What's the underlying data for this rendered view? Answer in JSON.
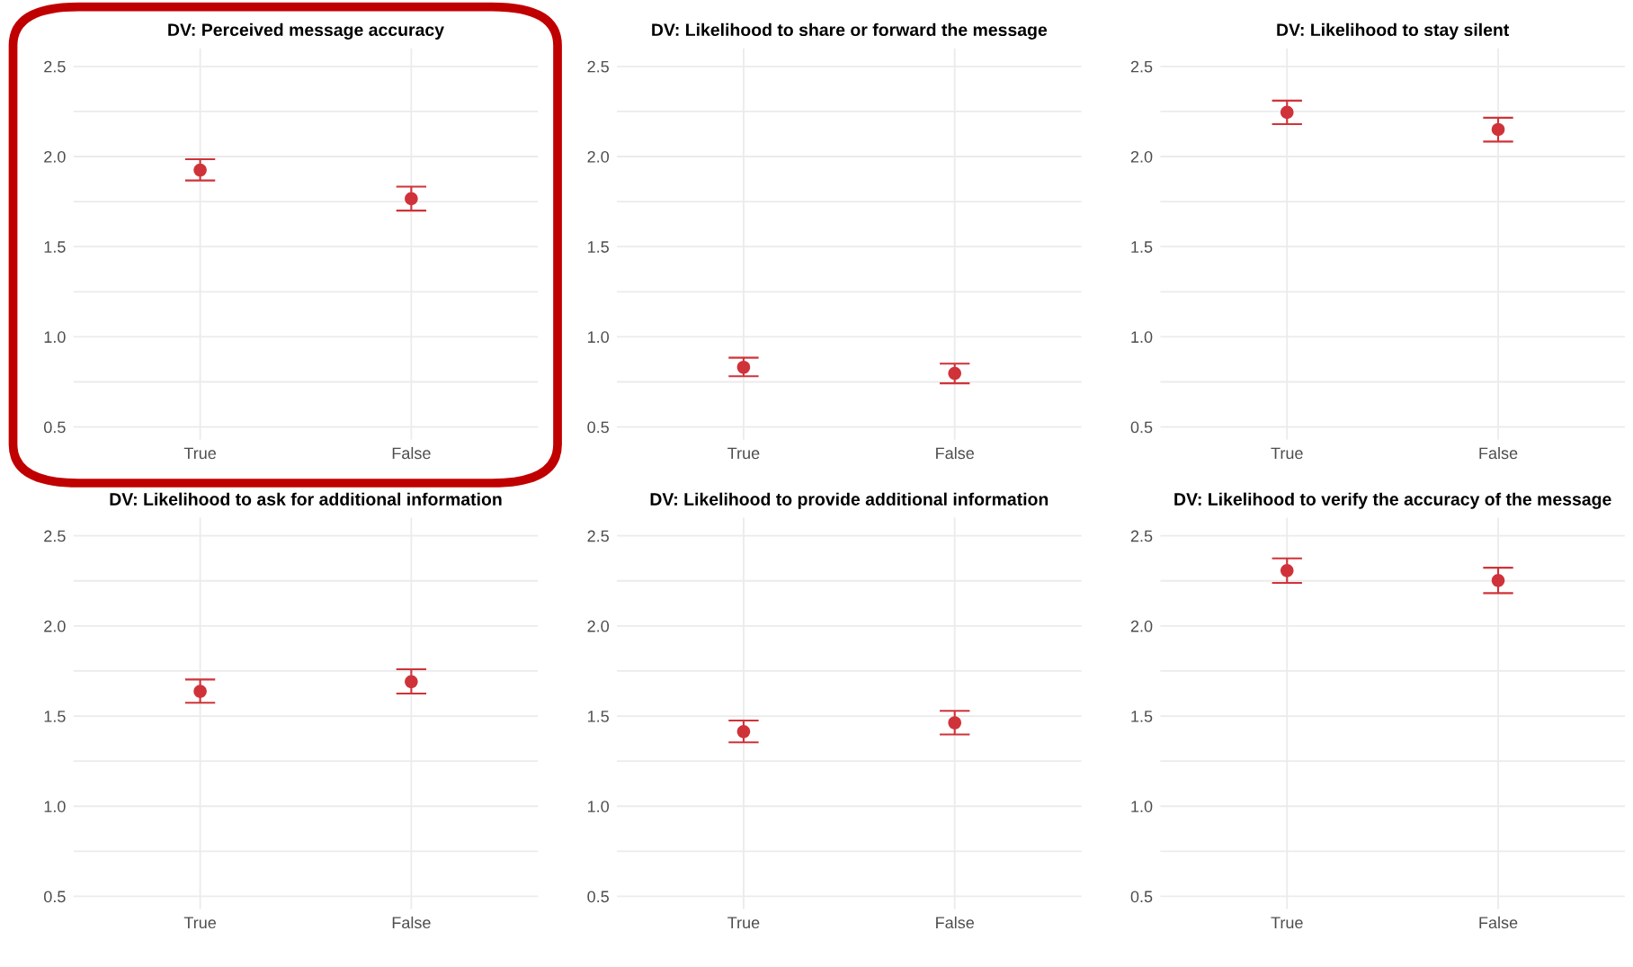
{
  "chart_data": [
    {
      "type": "scatter",
      "title": "DV: Perceived message accuracy",
      "categories": [
        "True",
        "False"
      ],
      "values": [
        1.925,
        1.766
      ],
      "errors": [
        [
          1.867,
          1.985
        ],
        [
          1.7,
          1.833
        ]
      ],
      "color": "#cf3339",
      "marker": "circle",
      "ylim": [
        0.43,
        2.6
      ],
      "yticks": [
        0.5,
        {
          "value": 0.75,
          "label": null
        },
        {
          "value": 1,
          "label": "1.0"
        },
        {
          "value": 1.25,
          "label": null
        },
        1.5,
        {
          "value": 1.75,
          "label": null
        },
        {
          "value": 2,
          "label": "2.0"
        },
        {
          "value": 2.25,
          "label": null
        },
        2.5
      ],
      "grid": true
    },
    {
      "type": "scatter",
      "title": "DV: Likelihood to share or forward the message",
      "categories": [
        "True",
        "False"
      ],
      "values": [
        0.831,
        0.797
      ],
      "errors": [
        [
          0.781,
          0.884
        ],
        [
          0.742,
          0.851
        ]
      ],
      "color": "#cf3339",
      "marker": "circle",
      "ylim": [
        0.43,
        2.6
      ],
      "yticks": [
        0.5,
        {
          "value": 0.75,
          "label": null
        },
        {
          "value": 1,
          "label": "1.0"
        },
        {
          "value": 1.25,
          "label": null
        },
        1.5,
        {
          "value": 1.75,
          "label": null
        },
        {
          "value": 2,
          "label": "2.0"
        },
        {
          "value": 2.25,
          "label": null
        },
        2.5
      ],
      "grid": true
    },
    {
      "type": "scatter",
      "title": "DV: Likelihood to stay silent",
      "categories": [
        "True",
        "False"
      ],
      "values": [
        2.245,
        2.15
      ],
      "errors": [
        [
          2.18,
          2.31
        ],
        [
          2.083,
          2.215
        ]
      ],
      "color": "#cf3339",
      "marker": "circle",
      "ylim": [
        0.43,
        2.6
      ],
      "yticks": [
        0.5,
        {
          "value": 0.75,
          "label": null
        },
        {
          "value": 1,
          "label": "1.0"
        },
        {
          "value": 1.25,
          "label": null
        },
        1.5,
        {
          "value": 1.75,
          "label": null
        },
        {
          "value": 2,
          "label": "2.0"
        },
        {
          "value": 2.25,
          "label": null
        },
        2.5
      ],
      "grid": true
    },
    {
      "type": "scatter",
      "title": "DV: Likelihood to ask for additional information",
      "categories": [
        "True",
        "False"
      ],
      "values": [
        1.637,
        1.691
      ],
      "errors": [
        [
          1.574,
          1.703
        ],
        [
          1.625,
          1.76
        ]
      ],
      "color": "#cf3339",
      "marker": "circle",
      "ylim": [
        0.43,
        2.6
      ],
      "yticks": [
        0.5,
        {
          "value": 0.75,
          "label": null
        },
        {
          "value": 1,
          "label": "1.0"
        },
        {
          "value": 1.25,
          "label": null
        },
        1.5,
        {
          "value": 1.75,
          "label": null
        },
        {
          "value": 2,
          "label": "2.0"
        },
        {
          "value": 2.25,
          "label": null
        },
        2.5
      ],
      "grid": true
    },
    {
      "type": "scatter",
      "title": "DV: Likelihood to provide additional information",
      "categories": [
        "True",
        "False"
      ],
      "values": [
        1.414,
        1.463
      ],
      "errors": [
        [
          1.354,
          1.475
        ],
        [
          1.398,
          1.529
        ]
      ],
      "color": "#cf3339",
      "marker": "circle",
      "ylim": [
        0.43,
        2.6
      ],
      "yticks": [
        0.5,
        {
          "value": 0.75,
          "label": null
        },
        {
          "value": 1,
          "label": "1.0"
        },
        {
          "value": 1.25,
          "label": null
        },
        1.5,
        {
          "value": 1.75,
          "label": null
        },
        {
          "value": 2,
          "label": "2.0"
        },
        {
          "value": 2.25,
          "label": null
        },
        2.5
      ],
      "grid": true
    },
    {
      "type": "scatter",
      "title": "DV: Likelihood to verify the accuracy of the message",
      "categories": [
        "True",
        "False"
      ],
      "values": [
        2.307,
        2.252
      ],
      "errors": [
        [
          2.239,
          2.375
        ],
        [
          2.182,
          2.323
        ]
      ],
      "color": "#cf3339",
      "marker": "circle",
      "ylim": [
        0.43,
        2.6
      ],
      "yticks": [
        0.5,
        {
          "value": 0.75,
          "label": null
        },
        {
          "value": 1,
          "label": "1.0"
        },
        {
          "value": 1.25,
          "label": null
        },
        1.5,
        {
          "value": 1.75,
          "label": null
        },
        {
          "value": 2,
          "label": "2.0"
        },
        {
          "value": 2.25,
          "label": null
        },
        2.5
      ],
      "grid": true
    }
  ]
}
